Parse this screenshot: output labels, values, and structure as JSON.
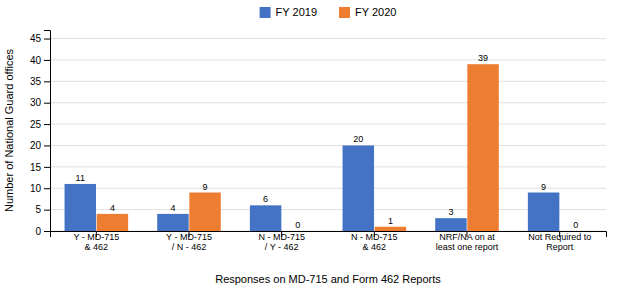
{
  "chart_data": {
    "type": "bar",
    "categories": [
      "Y - MD-715\n& 462",
      "Y - MD-715\n/ N - 462",
      "N - MD-715\n/ Y - 462",
      "N - MD-715\n& 462",
      "NRF/NA on at\nleast one report",
      "Not Required to\nReport"
    ],
    "series": [
      {
        "name": "FY 2019",
        "color": "#4472c4",
        "values": [
          11,
          4,
          6,
          20,
          3,
          9
        ]
      },
      {
        "name": "FY 2020",
        "color": "#ed7d31",
        "values": [
          4,
          9,
          0,
          1,
          39,
          0
        ]
      }
    ],
    "xlabel": "Responses on MD-715 and Form 462 Reports",
    "ylabel": "Number of National Guard offices",
    "ylim": [
      0,
      47
    ],
    "yticks": [
      0,
      5,
      10,
      15,
      20,
      25,
      30,
      35,
      40,
      45
    ],
    "grid": true,
    "legend": "top",
    "data_labels": true
  }
}
